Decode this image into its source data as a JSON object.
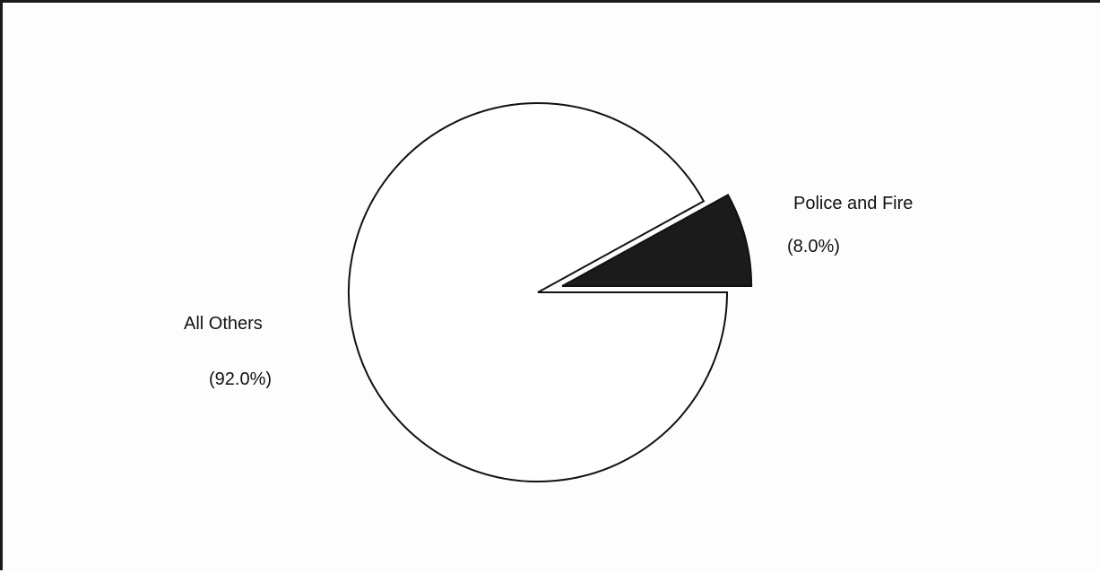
{
  "chart_data": {
    "type": "pie",
    "title": "",
    "slices": [
      {
        "label": "Police and Fire",
        "percent_label": "(8.0%)",
        "value": 8.0,
        "exploded": true,
        "fill": "#1b1b1b",
        "stroke": "#111111"
      },
      {
        "label": "All Others",
        "percent_label": "(92.0%)",
        "value": 92.0,
        "exploded": false,
        "fill": "#ffffff",
        "stroke": "#111111"
      }
    ],
    "legend": "none"
  }
}
